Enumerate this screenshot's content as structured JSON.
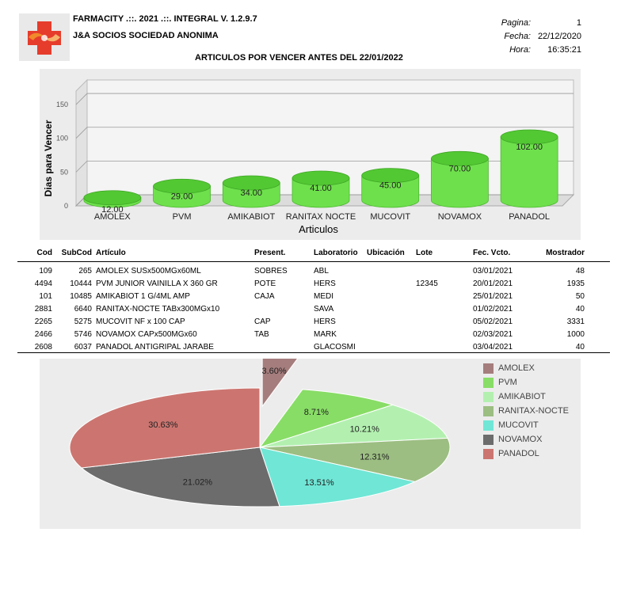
{
  "header": {
    "app_title": "FARMACITY .::. 2021 .::. INTEGRAL V. 1.2.9.7",
    "company": "J&A SOCIOS SOCIEDAD ANONIMA",
    "report_title": "ARTICULOS POR VENCER ANTES DEL 22/01/2022",
    "page_label": "Pagina:",
    "page_value": "1",
    "date_label": "Fecha:",
    "date_value": "22/12/2020",
    "time_label": "Hora:",
    "time_value": "16:35:21",
    "logo_icon": "farmacity-cross-hands-icon"
  },
  "chart_data": [
    {
      "type": "bar",
      "style": "3d-cylinder",
      "ylabel": "Dias para Vencer",
      "xlabel": "Articulos",
      "ylim": [
        0,
        150
      ],
      "yticks": [
        "0",
        "50",
        "100",
        "150"
      ],
      "categories": [
        "AMOLEX",
        "PVM",
        "AMIKABIOT",
        "RANITAX NOCTE",
        "MUCOVIT",
        "NOVAMOX",
        "PANADOL"
      ],
      "values": [
        12,
        29,
        34,
        41,
        45,
        70,
        102
      ],
      "value_labels": [
        "12.00",
        "29.00",
        "34.00",
        "41.00",
        "45.00",
        "70.00",
        "102.00"
      ],
      "color": "#66dd44",
      "grid": true
    },
    {
      "type": "pie",
      "categories": [
        "AMOLEX",
        "PVM",
        "AMIKABIOT",
        "RANITAX-NOCTE",
        "MUCOVIT",
        "NOVAMOX",
        "PANADOL"
      ],
      "values": [
        3.6,
        8.71,
        10.21,
        12.31,
        13.51,
        21.02,
        30.63
      ],
      "value_labels": [
        "3.60%",
        "8.71%",
        "10.21%",
        "12.31%",
        "13.51%",
        "21.02%",
        "30.63%"
      ],
      "colors": [
        "#a57d7d",
        "#88dd66",
        "#b3f0b0",
        "#9cbe82",
        "#70e6d6",
        "#6c6c6c",
        "#cc7570"
      ],
      "legend_position": "right",
      "exploded": [
        "AMOLEX"
      ]
    }
  ],
  "table": {
    "columns": [
      "Cod",
      "SubCod",
      "Artículo",
      "Present.",
      "Laboratorio",
      "Ubicación",
      "Lote",
      "Fec. Vcto.",
      "Mostrador"
    ],
    "rows": [
      [
        "109",
        "265",
        "AMOLEX SUSx500MGx60ML",
        "SOBRES",
        "ABL",
        "",
        "",
        "03/01/2021",
        "48"
      ],
      [
        "4494",
        "10444",
        "PVM JUNIOR VAINILLA X 360 GR",
        "POTE",
        "HERS",
        "",
        "12345",
        "20/01/2021",
        "1935"
      ],
      [
        "101",
        "10485",
        "AMIKABIOT 1 G/4ML AMP",
        "CAJA",
        "MEDI",
        "",
        "",
        "25/01/2021",
        "50"
      ],
      [
        "2881",
        "6640",
        "RANITAX-NOCTE TABx300MGx10",
        "",
        "SAVA",
        "",
        "",
        "01/02/2021",
        "40"
      ],
      [
        "2265",
        "5275",
        "MUCOVIT NF x 100 CAP",
        "CAP",
        "HERS",
        "",
        "",
        "05/02/2021",
        "3331"
      ],
      [
        "2466",
        "5746",
        "NOVAMOX CAPx500MGx60",
        "TAB",
        "MARK",
        "",
        "",
        "02/03/2021",
        "1000"
      ],
      [
        "2608",
        "6037",
        "PANADOL ANTIGRIPAL JARABE",
        "",
        "GLACOSMI",
        "",
        "",
        "03/04/2021",
        "40"
      ]
    ]
  }
}
